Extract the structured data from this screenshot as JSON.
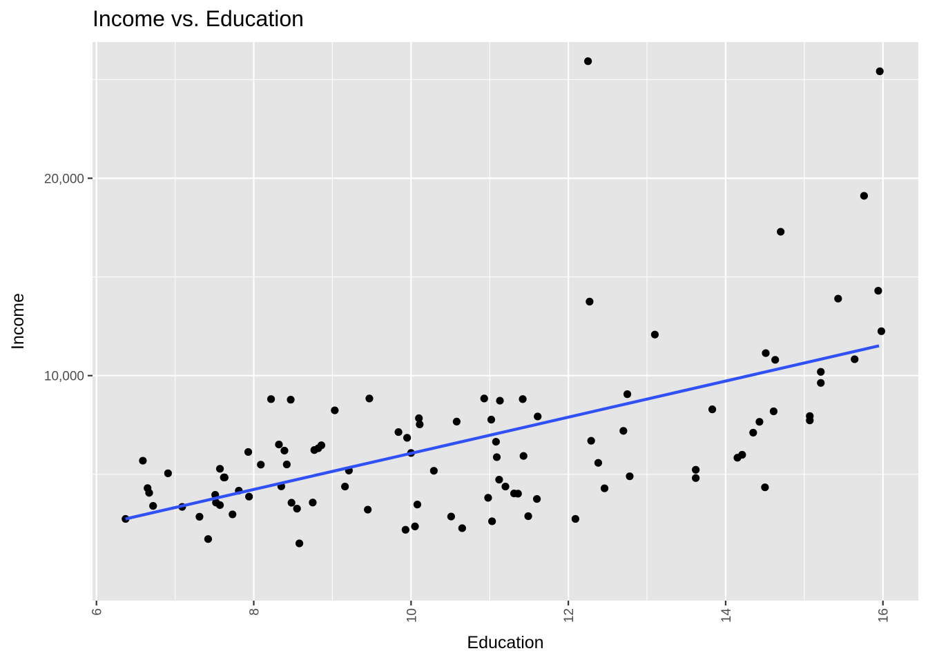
{
  "chart_data": {
    "type": "scatter",
    "title": "Income vs. Education",
    "xlabel": "Education",
    "ylabel": "Income",
    "xlim": [
      5.95,
      16.45
    ],
    "ylim": [
      -1400,
      26900
    ],
    "x_ticks": [
      6,
      8,
      10,
      12,
      14,
      16
    ],
    "x_tick_labels": [
      "6",
      "8",
      "10",
      "12",
      "14",
      "16"
    ],
    "y_ticks": [
      10000,
      20000
    ],
    "y_tick_labels": [
      "10,000",
      "20,000"
    ],
    "grid": true,
    "legend": "none",
    "panel_color": "#e5e5e5",
    "point_color": "#000000",
    "line_color": "#3050f8",
    "points": [
      [
        6.37,
        2740
      ],
      [
        6.59,
        5690
      ],
      [
        6.65,
        4300
      ],
      [
        6.67,
        4060
      ],
      [
        6.72,
        3400
      ],
      [
        6.91,
        5050
      ],
      [
        7.09,
        3350
      ],
      [
        7.31,
        2850
      ],
      [
        7.42,
        1720
      ],
      [
        7.51,
        3960
      ],
      [
        7.52,
        3570
      ],
      [
        7.57,
        3440
      ],
      [
        7.57,
        5280
      ],
      [
        7.62,
        4840
      ],
      [
        7.63,
        4840
      ],
      [
        7.73,
        2970
      ],
      [
        7.81,
        4170
      ],
      [
        7.93,
        6130
      ],
      [
        7.94,
        3870
      ],
      [
        8.09,
        5490
      ],
      [
        8.22,
        8810
      ],
      [
        8.32,
        6510
      ],
      [
        8.35,
        4390
      ],
      [
        8.39,
        6200
      ],
      [
        8.42,
        5500
      ],
      [
        8.47,
        8780
      ],
      [
        8.48,
        3560
      ],
      [
        8.55,
        3260
      ],
      [
        8.58,
        1500
      ],
      [
        8.75,
        3570
      ],
      [
        8.77,
        6230
      ],
      [
        8.82,
        6320
      ],
      [
        8.86,
        6470
      ],
      [
        9.03,
        8240
      ],
      [
        9.16,
        4380
      ],
      [
        9.21,
        5190
      ],
      [
        9.45,
        3210
      ],
      [
        9.47,
        8840
      ],
      [
        9.84,
        7140
      ],
      [
        9.93,
        2190
      ],
      [
        9.95,
        6850
      ],
      [
        10.0,
        6080
      ],
      [
        10.05,
        2360
      ],
      [
        10.08,
        3470
      ],
      [
        10.1,
        7840
      ],
      [
        10.11,
        7530
      ],
      [
        10.29,
        5180
      ],
      [
        10.51,
        2860
      ],
      [
        10.58,
        7670
      ],
      [
        10.65,
        2270
      ],
      [
        10.93,
        8840
      ],
      [
        10.98,
        3810
      ],
      [
        11.02,
        7770
      ],
      [
        11.03,
        2620
      ],
      [
        11.08,
        6650
      ],
      [
        11.09,
        5870
      ],
      [
        11.12,
        4730
      ],
      [
        11.13,
        8730
      ],
      [
        11.2,
        4380
      ],
      [
        11.31,
        4030
      ],
      [
        11.36,
        4020
      ],
      [
        11.42,
        8810
      ],
      [
        11.43,
        5930
      ],
      [
        11.49,
        2880
      ],
      [
        11.6,
        3750
      ],
      [
        11.61,
        7930
      ],
      [
        12.09,
        2740
      ],
      [
        12.25,
        25930
      ],
      [
        12.27,
        13750
      ],
      [
        12.29,
        6700
      ],
      [
        12.38,
        5580
      ],
      [
        12.46,
        4290
      ],
      [
        12.7,
        7200
      ],
      [
        12.75,
        9060
      ],
      [
        12.78,
        4900
      ],
      [
        13.1,
        12080
      ],
      [
        13.62,
        5230
      ],
      [
        13.62,
        4810
      ],
      [
        13.83,
        8290
      ],
      [
        14.15,
        5840
      ],
      [
        14.21,
        5990
      ],
      [
        14.35,
        7110
      ],
      [
        14.43,
        7660
      ],
      [
        14.5,
        4340
      ],
      [
        14.51,
        11140
      ],
      [
        14.61,
        8190
      ],
      [
        14.63,
        10800
      ],
      [
        14.7,
        17290
      ],
      [
        15.07,
        7730
      ],
      [
        15.07,
        7950
      ],
      [
        15.21,
        9630
      ],
      [
        15.21,
        10190
      ],
      [
        15.43,
        13900
      ],
      [
        15.64,
        10830
      ],
      [
        15.76,
        19110
      ],
      [
        15.94,
        14300
      ],
      [
        15.96,
        25420
      ],
      [
        15.98,
        12250
      ]
    ],
    "fit_line": {
      "x": [
        6.37,
        15.95
      ],
      "y": [
        2740,
        11510
      ]
    }
  }
}
